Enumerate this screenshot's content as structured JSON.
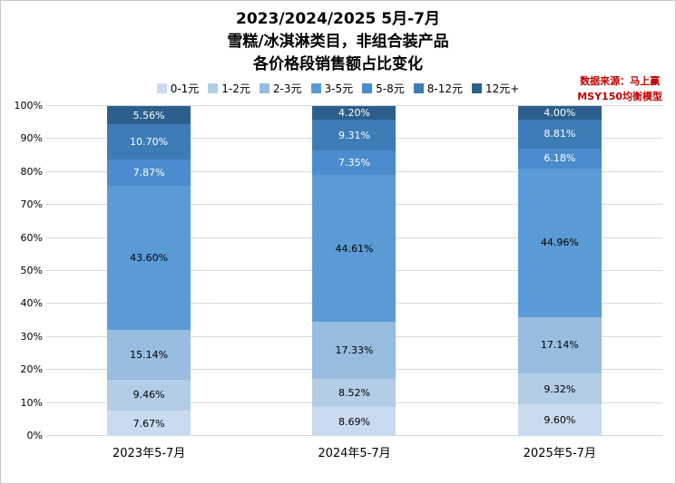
{
  "title": {
    "line1": "2023/2024/2025 5月-7月",
    "line2": "雪糕/冰淇淋类目，非组合装产品",
    "line3": "各价格段销售额占比变化"
  },
  "source": {
    "line1": "数据来源：马上赢",
    "line2": "MSY150均衡模型"
  },
  "chart_data": {
    "type": "bar",
    "stacked": true,
    "percent": true,
    "title": "2023/2024/2025 5月-7月 雪糕/冰淇淋类目，非组合装产品 各价格段销售额占比变化",
    "categories": [
      "2023年5-7月",
      "2024年5-7月",
      "2025年5-7月"
    ],
    "series": [
      {
        "name": "0-1元",
        "color": "#c9dbee",
        "text_color": "#000000",
        "values": [
          7.67,
          8.69,
          9.6
        ]
      },
      {
        "name": "1-2元",
        "color": "#b3cde7",
        "text_color": "#000000",
        "values": [
          9.46,
          8.52,
          9.32
        ]
      },
      {
        "name": "2-3元",
        "color": "#97bce0",
        "text_color": "#000000",
        "values": [
          15.14,
          17.33,
          17.14
        ]
      },
      {
        "name": "3-5元",
        "color": "#5b9bd5",
        "text_color": "#000000",
        "values": [
          43.6,
          44.61,
          44.96
        ]
      },
      {
        "name": "5-8元",
        "color": "#4a8ccd",
        "text_color": "#ffffff",
        "values": [
          7.87,
          7.35,
          6.18
        ]
      },
      {
        "name": "8-12元",
        "color": "#3e7cb8",
        "text_color": "#ffffff",
        "values": [
          10.7,
          9.31,
          8.81
        ]
      },
      {
        "name": "12元+",
        "color": "#2d5f8d",
        "text_color": "#ffffff",
        "values": [
          5.56,
          4.2,
          4.0
        ]
      }
    ],
    "xlabel": "",
    "ylabel": "",
    "y_ticks": [
      "0%",
      "10%",
      "20%",
      "30%",
      "40%",
      "50%",
      "60%",
      "70%",
      "80%",
      "90%",
      "100%"
    ],
    "ylim": [
      0,
      100
    ],
    "grid": true,
    "legend_position": "top"
  }
}
